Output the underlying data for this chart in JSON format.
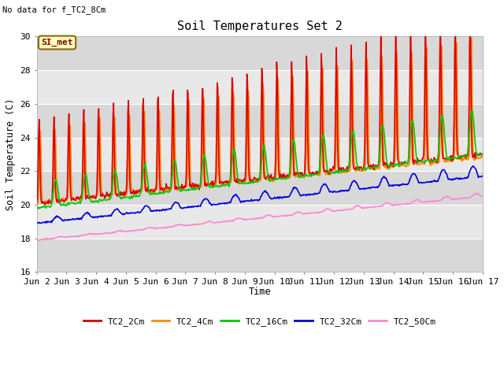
{
  "title": "Soil Temperatures Set 2",
  "subtitle": "No data for f_TC2_8Cm",
  "xlabel": "Time",
  "ylabel": "Soil Temperature (C)",
  "ylim": [
    16,
    30
  ],
  "yticks": [
    16,
    18,
    20,
    22,
    24,
    26,
    28,
    30
  ],
  "xtick_labels": [
    "Jun 2",
    "Jun 3",
    "Jun 4",
    "Jun 5",
    "Jun 6",
    "Jun 7",
    "Jun 8",
    "Jun 9",
    "Jun 10",
    "Jun 11",
    "Jun 12",
    "Jun 13",
    "Jun 14",
    "Jun 15",
    "Jun 16",
    "Jun 17"
  ],
  "background_color": "#ffffff",
  "plot_bg_color": "#e8e8e8",
  "band_colors": [
    "#d8d8d8",
    "#e8e8e8"
  ],
  "grid_color": "#ffffff",
  "legend_label": "SI_met",
  "series": {
    "TC2_2Cm": {
      "color": "#dd0000",
      "lw": 1.2
    },
    "TC2_4Cm": {
      "color": "#ff8800",
      "lw": 1.2
    },
    "TC2_16Cm": {
      "color": "#00cc00",
      "lw": 1.2
    },
    "TC2_32Cm": {
      "color": "#0000dd",
      "lw": 1.2
    },
    "TC2_50Cm": {
      "color": "#ff88cc",
      "lw": 1.2
    }
  }
}
